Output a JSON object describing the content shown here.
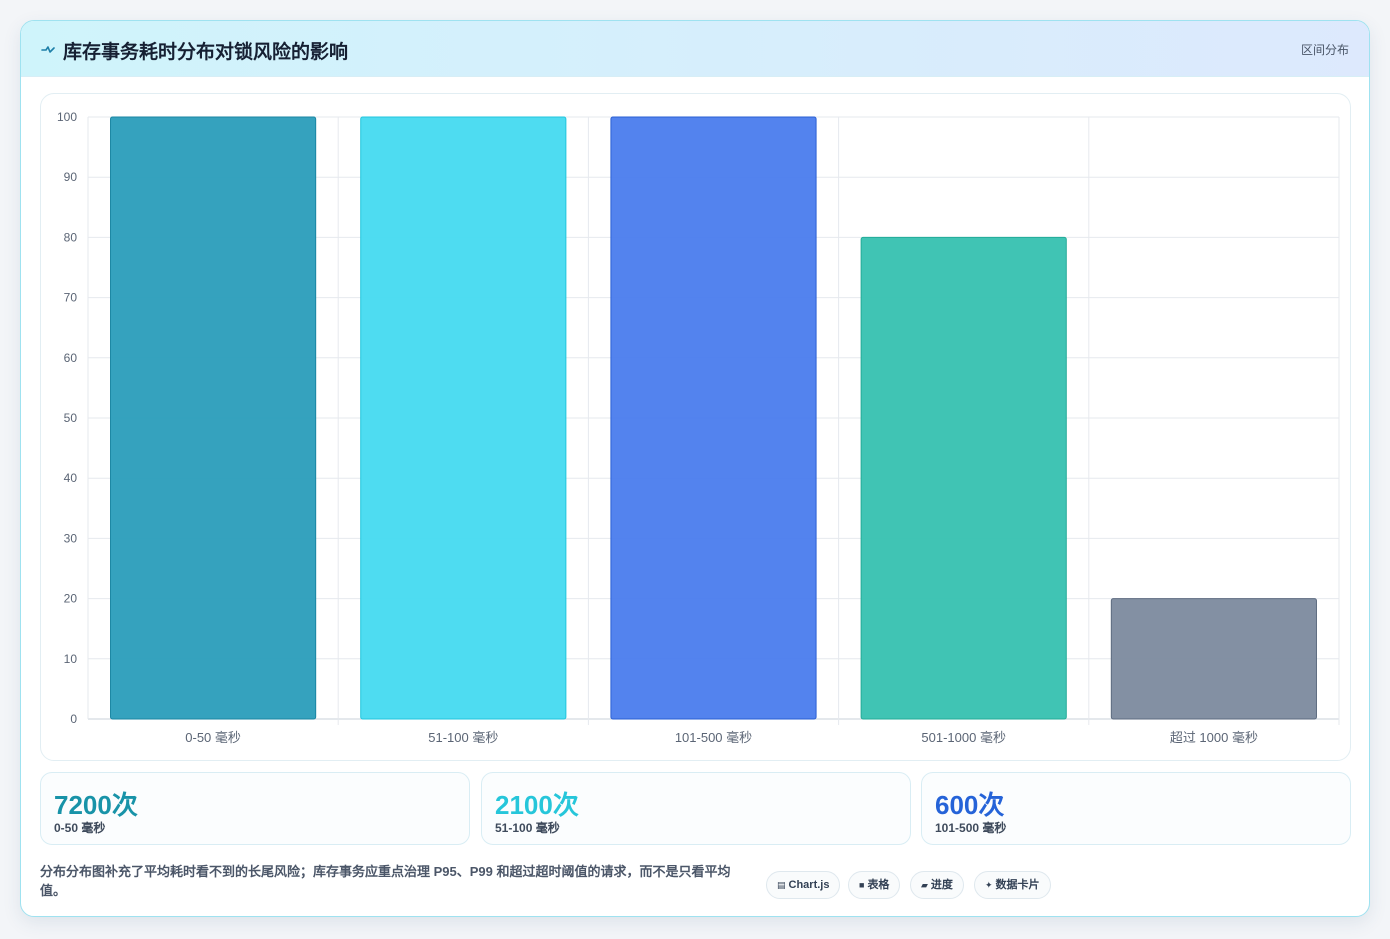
{
  "header": {
    "title": "库存事务耗时分布对锁风险的影响",
    "tag": "区间分布",
    "icon": "pulse-icon"
  },
  "chart_data": {
    "type": "bar",
    "categories": [
      "0-50 毫秒",
      "51-100 毫秒",
      "101-500 毫秒",
      "501-1000 毫秒",
      "超过 1000 毫秒"
    ],
    "values": [
      100,
      100,
      100,
      80,
      20
    ],
    "colors": [
      "#2a9dbb",
      "#44daf0",
      "#4a7ced",
      "#36c1b0",
      "#7c8a9e"
    ],
    "border_colors": [
      "#1a86a3",
      "#21c5dd",
      "#2a5fd3",
      "#23ab98",
      "#5d6b80"
    ],
    "ylim": [
      0,
      100
    ],
    "yticks": [
      0,
      10,
      20,
      30,
      40,
      50,
      60,
      70,
      80,
      90,
      100
    ],
    "grid": true,
    "title": "",
    "xlabel": "",
    "ylabel": ""
  },
  "stats": [
    {
      "value": "7200次",
      "label": "0-50 毫秒",
      "color": "#1893a8"
    },
    {
      "value": "2100次",
      "label": "51-100 毫秒",
      "color": "#26c6da"
    },
    {
      "value": "600次",
      "label": "101-500 毫秒",
      "color": "#2563d8"
    }
  ],
  "note": "分布分布图补充了平均耗时看不到的长尾风险；库存事务应重点治理 P95、P99 和超过超时阈值的请求，而不是只看平均值。",
  "chips": [
    {
      "icon": "chart-icon",
      "glyph": "▤",
      "label": "Chart.js"
    },
    {
      "icon": "table-icon",
      "glyph": "■",
      "label": "表格"
    },
    {
      "icon": "progress-icon",
      "glyph": "▰",
      "label": "进度"
    },
    {
      "icon": "sparkle-icon",
      "glyph": "✦",
      "label": "数据卡片"
    }
  ]
}
